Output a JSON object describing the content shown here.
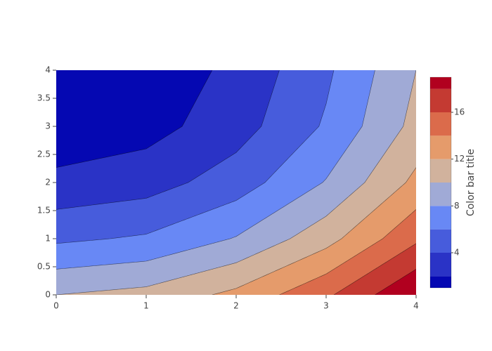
{
  "chart_data": {
    "type": "contour",
    "x": [
      0,
      1,
      2,
      3,
      4
    ],
    "y": [
      0,
      1,
      2,
      3,
      4
    ],
    "z": [
      [
        10,
        10.625,
        12.5,
        15.625,
        20
      ],
      [
        5.625,
        6.25,
        8.125,
        11.25,
        15.625
      ],
      [
        2.5,
        3.125,
        5,
        8.125,
        12.5
      ],
      [
        0.625,
        1.25,
        3.125,
        6.25,
        10.625
      ],
      [
        0,
        0.625,
        2.5,
        5.625,
        10
      ]
    ],
    "levels": [
      2,
      4,
      6,
      8,
      10,
      12,
      14,
      16,
      18
    ],
    "colors": [
      "#0508b2",
      "#2a33c6",
      "#475cdc",
      "#6888f5",
      "#a0aad6",
      "#d1b29d",
      "#e59b6b",
      "#db6b4b",
      "#c43a32",
      "#b1001f"
    ],
    "xlim": [
      0,
      4
    ],
    "ylim": [
      0,
      4
    ],
    "xticks": [
      0,
      1,
      2,
      3,
      4
    ],
    "yticks": [
      0,
      0.5,
      1,
      1.5,
      2,
      2.5,
      3,
      3.5,
      4
    ],
    "colorbar": {
      "title": "Color bar title",
      "lim": [
        1,
        19
      ],
      "ticks": [
        4,
        8,
        12,
        16
      ]
    }
  }
}
